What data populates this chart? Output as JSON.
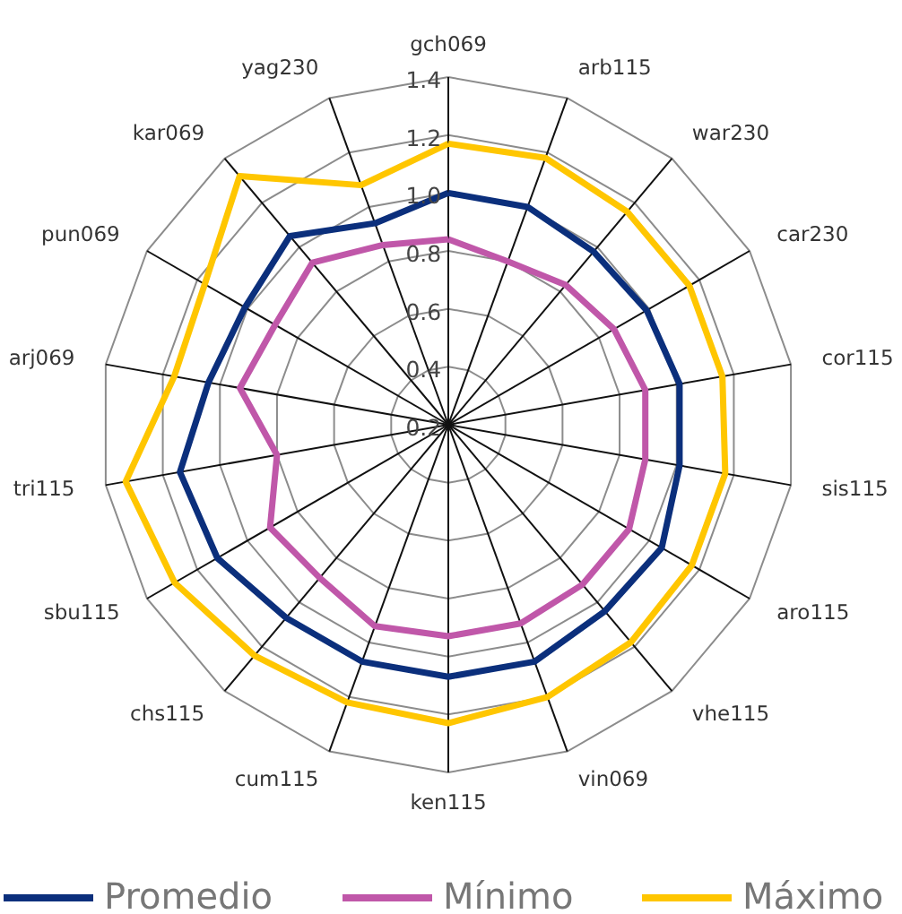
{
  "chart_data": {
    "type": "radar",
    "categories": [
      "gch069",
      "arb115",
      "war230",
      "car230",
      "cor115",
      "sis115",
      "aro115",
      "vhe115",
      "vin069",
      "ken115",
      "cum115",
      "chs115",
      "sbu115",
      "tri115",
      "arj069",
      "pun069",
      "kar069",
      "yag230"
    ],
    "series": [
      {
        "name": "Promedio",
        "color": "#0b2f7c",
        "values": [
          1.0,
          1.0,
          0.98,
          0.99,
          1.01,
          1.01,
          1.05,
          1.04,
          1.07,
          1.07,
          1.07,
          1.07,
          1.12,
          1.14,
          1.04,
          1.01,
          1.05,
          0.94
        ]
      },
      {
        "name": "Mínimo",
        "color": "#c057a9",
        "values": [
          0.84,
          0.8,
          0.83,
          0.86,
          0.89,
          0.89,
          0.92,
          0.92,
          0.93,
          0.93,
          0.94,
          0.89,
          0.91,
          0.8,
          0.93,
          0.89,
          0.93,
          0.86
        ]
      },
      {
        "name": "Máximo",
        "color": "#ffc600",
        "values": [
          1.17,
          1.18,
          1.16,
          1.16,
          1.16,
          1.17,
          1.17,
          1.18,
          1.2,
          1.23,
          1.22,
          1.24,
          1.29,
          1.33,
          1.16,
          1.17,
          1.32,
          1.08
        ]
      }
    ],
    "ylim": [
      0.2,
      1.4
    ],
    "yticks": [
      0.2,
      0.4,
      0.6,
      0.8,
      {
        "value": 1,
        "label": "1.0"
      },
      1.2,
      1.4
    ],
    "grid": true,
    "legend": "bottom"
  }
}
